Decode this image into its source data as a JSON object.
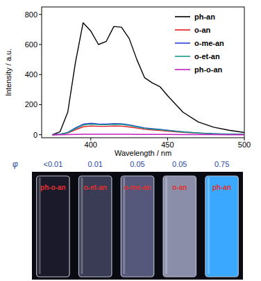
{
  "chart_data": {
    "type": "line",
    "x_label": "Wavelength / nm",
    "y_label": "Intensity / a.u.",
    "x": [
      375,
      380,
      385,
      390,
      395,
      400,
      405,
      410,
      415,
      420,
      425,
      430,
      435,
      440,
      445,
      450,
      460,
      470,
      480,
      490,
      500
    ],
    "series": [
      {
        "name": "ph-an",
        "color": "#000000",
        "values": [
          0,
          20,
          150,
          480,
          745,
          690,
          600,
          620,
          720,
          715,
          640,
          500,
          380,
          345,
          320,
          260,
          150,
          85,
          50,
          30,
          15
        ]
      },
      {
        "name": "o-an",
        "color": "#e8191e",
        "values": [
          0,
          2,
          11,
          33,
          53,
          58,
          56,
          56,
          58,
          57,
          52,
          44,
          36,
          32,
          28,
          24,
          16,
          10,
          5,
          3,
          1
        ]
      },
      {
        "name": "o-me-an",
        "color": "#2a3fd6",
        "values": [
          0,
          3,
          15,
          45,
          70,
          76,
          72,
          70,
          74,
          73,
          66,
          55,
          45,
          40,
          36,
          30,
          20,
          12,
          7,
          4,
          2
        ]
      },
      {
        "name": "o-et-an",
        "color": "#1a9a8a",
        "values": [
          0,
          3,
          13,
          40,
          64,
          70,
          67,
          66,
          69,
          68,
          62,
          52,
          42,
          37,
          33,
          28,
          18,
          11,
          6,
          3,
          2
        ]
      },
      {
        "name": "ph-o-an",
        "color": "#c020c0",
        "values": [
          0,
          0,
          1,
          2,
          3,
          3,
          3,
          3,
          3,
          3,
          3,
          2,
          2,
          2,
          2,
          2,
          1,
          1,
          1,
          0,
          0
        ]
      }
    ],
    "xlim": [
      368,
      500
    ],
    "xticks": [
      400,
      450,
      500
    ],
    "ylim": [
      -20,
      850
    ],
    "yticks": [
      0,
      200,
      400,
      600,
      800
    ],
    "legend": "upper-right",
    "grid": false
  },
  "photo": {
    "phi_symbol": "φ",
    "vials": [
      {
        "label": "ph-o-an",
        "phi": "<0.01",
        "color": "#1a1a2a"
      },
      {
        "label": "o-et-an",
        "phi": 0.01,
        "color": "#3a3c55"
      },
      {
        "label": "o-me-an",
        "phi": 0.05,
        "color": "#55587a"
      },
      {
        "label": "o-an",
        "phi": 0.05,
        "color": "#8a8ea8"
      },
      {
        "label": "ph-an",
        "phi": 0.75,
        "color": "#3aa8ff"
      }
    ]
  }
}
